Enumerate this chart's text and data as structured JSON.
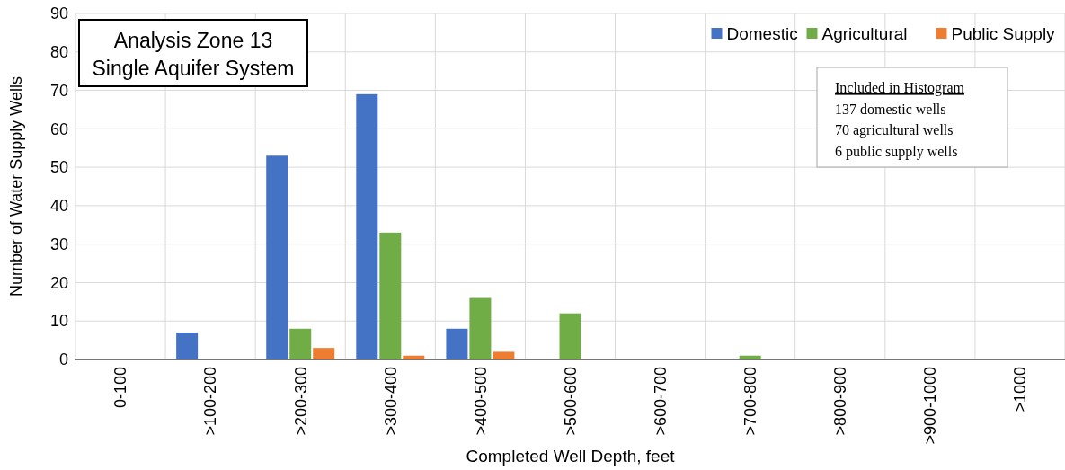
{
  "chart_data": {
    "type": "bar",
    "title": "Analysis Zone 13",
    "subtitle": "Single Aquifer System",
    "xlabel": "Completed Well Depth, feet",
    "ylabel": "Number of Water Supply Wells",
    "categories": [
      "0-100",
      ">100-200",
      ">200-300",
      ">300-400",
      ">400-500",
      ">500-600",
      ">600-700",
      ">700-800",
      ">800-900",
      ">900-1000",
      ">1000"
    ],
    "series": [
      {
        "name": "Domestic",
        "color": "#4472c4",
        "values": [
          0,
          7,
          53,
          69,
          8,
          0,
          0,
          0,
          0,
          0,
          0
        ]
      },
      {
        "name": "Agricultural",
        "color": "#70ad47",
        "values": [
          0,
          0,
          8,
          33,
          16,
          12,
          0,
          1,
          0,
          0,
          0
        ]
      },
      {
        "name": "Public Supply",
        "color": "#ed7d31",
        "values": [
          0,
          0,
          3,
          1,
          2,
          0,
          0,
          0,
          0,
          0,
          0
        ]
      }
    ],
    "ylim": [
      0,
      90
    ],
    "yticks": [
      0,
      10,
      20,
      30,
      40,
      50,
      60,
      70,
      80,
      90
    ],
    "grid": true,
    "legend": "top right",
    "annotations": [
      "Included in Histogram",
      "137 domestic wells",
      "70 agricultural wells",
      "6 public supply wells"
    ]
  }
}
